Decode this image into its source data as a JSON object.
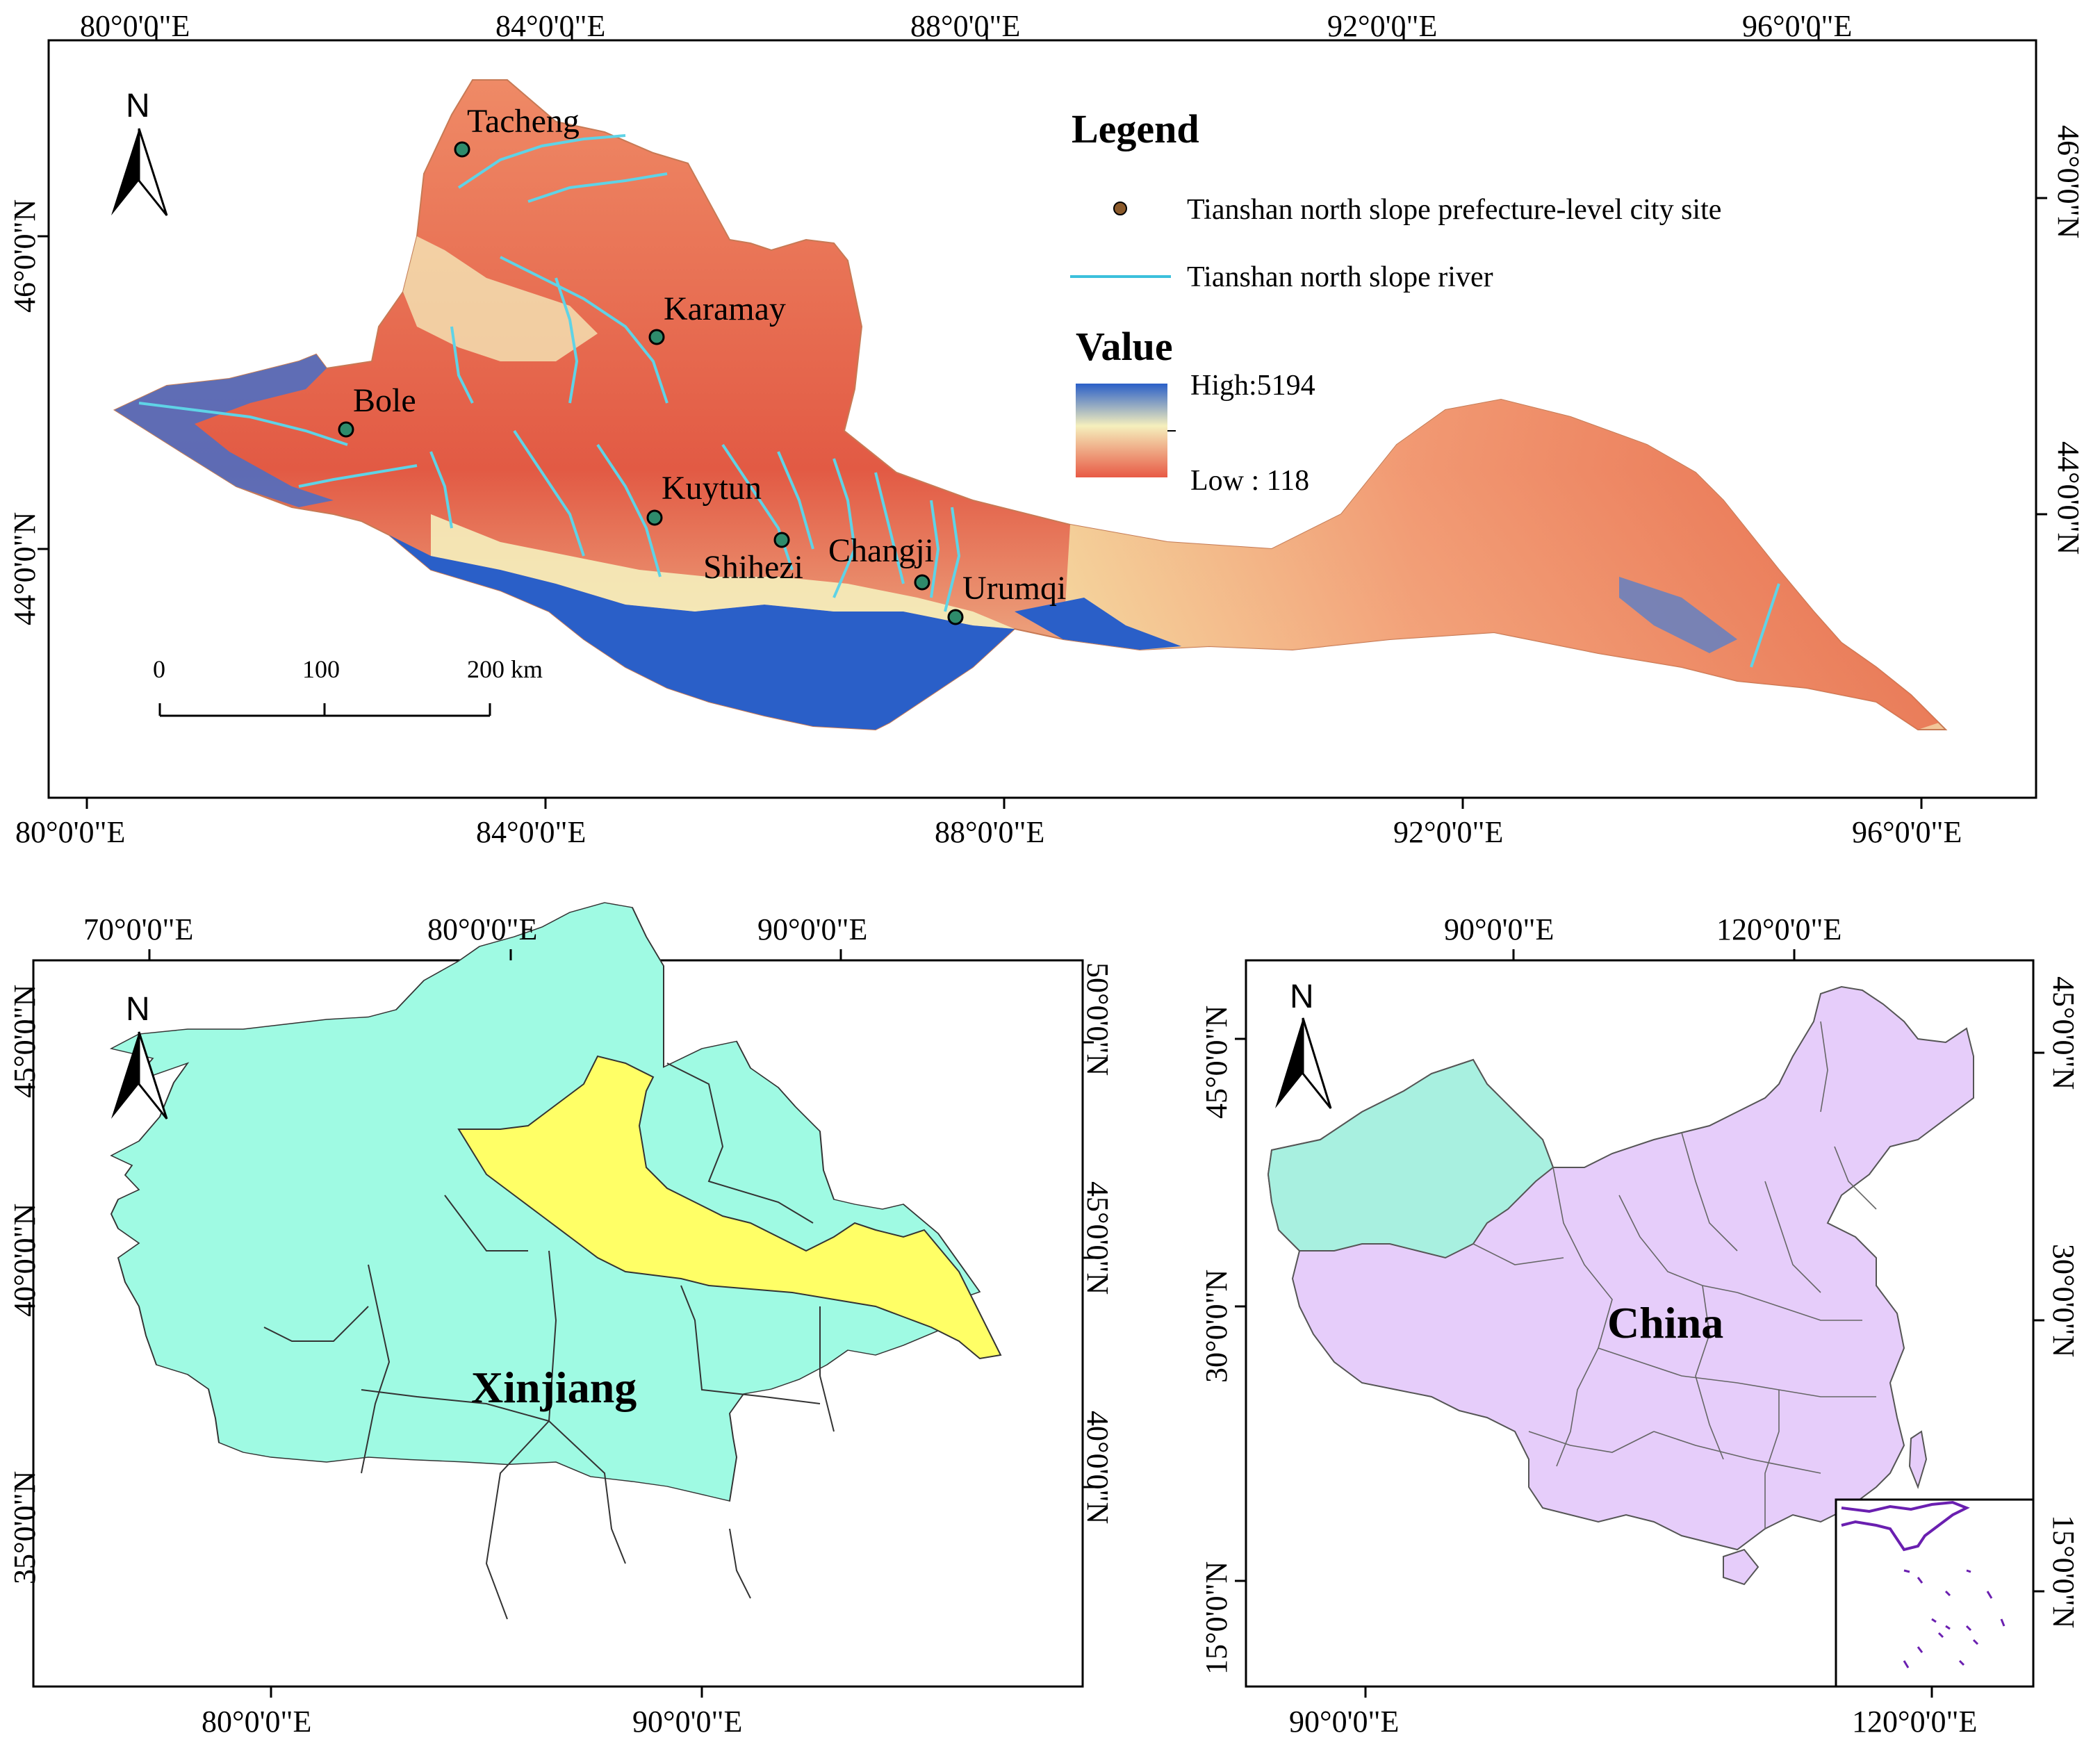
{
  "main_map": {
    "x_ticks_top": [
      "80°0'0\"E",
      "84°0'0\"E",
      "88°0'0\"E",
      "92°0'0\"E",
      "96°0'0\"E"
    ],
    "x_ticks_bottom": [
      "80°0'0\"E",
      "84°0'0\"E",
      "88°0'0\"E",
      "92°0'0\"E",
      "96°0'0\"E"
    ],
    "y_ticks_left": [
      "46°0'0\"N",
      "44°0'0\"N"
    ],
    "y_ticks_right": [
      "46°0'0\"N",
      "44°0'0\"N"
    ],
    "north_label": "N",
    "cities": [
      "Tacheng",
      "Karamay",
      "Bole",
      "Kuytun",
      "Shihezi",
      "Changji",
      "Urumqi"
    ],
    "scale_bar": {
      "labels": [
        "0",
        "100",
        "200 km"
      ]
    },
    "legend": {
      "title": "Legend",
      "city_site": "Tianshan north slope prefecture-level city site",
      "river": "Tianshan north slope river",
      "value_title": "Value",
      "high": "High:5194",
      "low": "Low : 118"
    },
    "colors": {
      "low": "#e85a45",
      "mid": "#f5efbd",
      "high": "#2a5fc8",
      "river": "#5fd3e6",
      "city": "#2e8b6b"
    }
  },
  "xinjiang_map": {
    "x_ticks_top": [
      "70°0'0\"E",
      "80°0'0\"E",
      "90°0'0\"E"
    ],
    "x_ticks_bottom": [
      "80°0'0\"E",
      "90°0'0\"E"
    ],
    "y_ticks_left": [
      "45°0'0\"N",
      "40°0'0\"N",
      "35°0'0\"N"
    ],
    "y_ticks_right": [
      "50°0'0\"N",
      "45°0'0\"N",
      "40°0'0\"N"
    ],
    "north_label": "N",
    "label": "Xinjiang",
    "colors": {
      "region": "#9ffae3",
      "highlight": "#ffff66"
    }
  },
  "china_map": {
    "x_ticks_top": [
      "90°0'0\"E",
      "120°0'0\"E"
    ],
    "x_ticks_bottom": [
      "90°0'0\"E",
      "120°0'0\"E"
    ],
    "y_ticks_left": [
      "45°0'0\"N",
      "30°0'0\"N",
      "15°0'0\"N"
    ],
    "y_ticks_right": [
      "45°0'0\"N",
      "30°0'0\"N",
      "15°0'0\"N"
    ],
    "north_label": "N",
    "label": "China",
    "colors": {
      "country": "#e6cdfa",
      "xinjiang": "#a8f0e0",
      "inset_border": "#6a1fb0"
    }
  }
}
